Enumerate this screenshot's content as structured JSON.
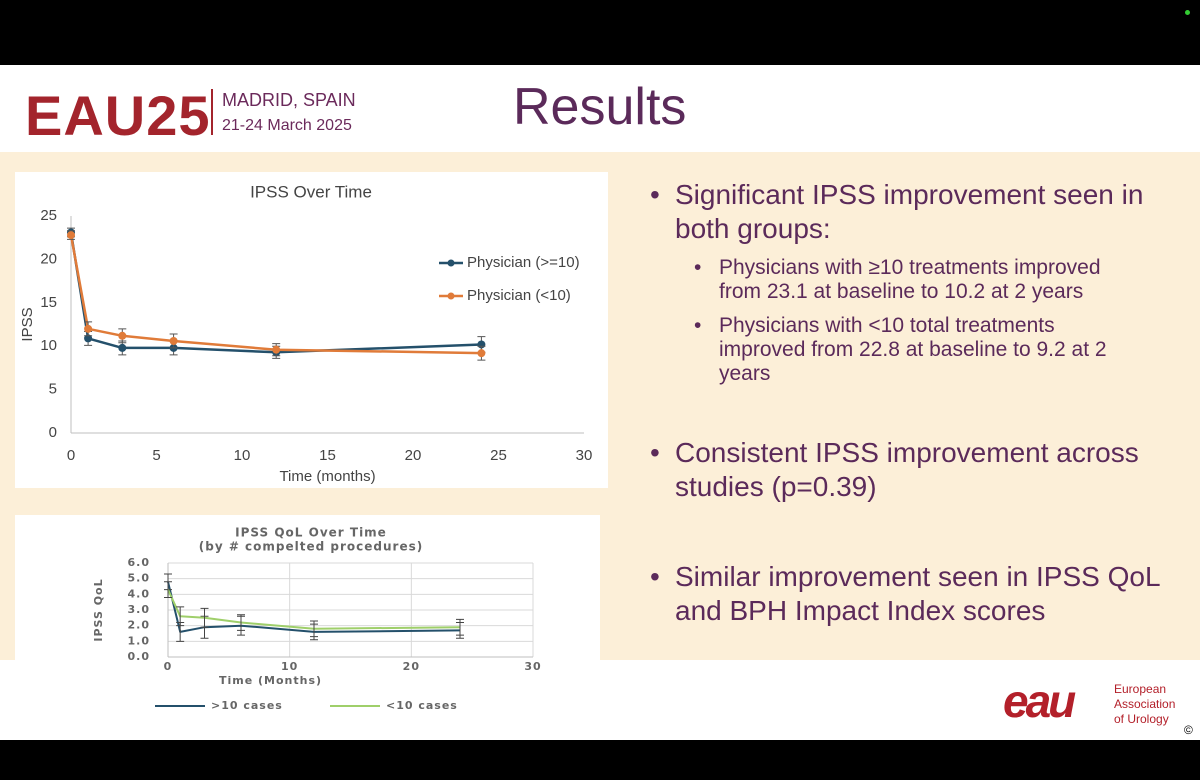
{
  "header": {
    "brand": "EAU25",
    "location": "MADRID, SPAIN",
    "dates": "21-24 March 2025",
    "title": "Results"
  },
  "chart_data": [
    {
      "type": "line",
      "title": "IPSS Over Time",
      "x_label": "Time (months)",
      "y_label": "IPSS",
      "x": [
        0,
        1,
        3,
        6,
        12,
        24
      ],
      "xlim": [
        0,
        30
      ],
      "xticks": [
        0,
        5,
        10,
        15,
        20,
        25,
        30
      ],
      "ylim": [
        0,
        25
      ],
      "yticks": [
        0,
        5,
        10,
        15,
        20,
        25
      ],
      "grid": false,
      "markers": true,
      "legend": "right",
      "series": [
        {
          "name": "Physician (>=10)",
          "color": "#24506b",
          "values": [
            23.1,
            10.9,
            9.8,
            9.8,
            9.3,
            10.2
          ],
          "errors": [
            0.5,
            0.8,
            0.8,
            0.8,
            0.7,
            0.9
          ]
        },
        {
          "name": "Physician (<10)",
          "color": "#e07b39",
          "values": [
            22.8,
            12.0,
            11.2,
            10.6,
            9.6,
            9.2
          ],
          "errors": [
            0.5,
            0.8,
            0.8,
            0.8,
            0.7,
            0.8
          ]
        }
      ]
    },
    {
      "type": "line",
      "title": "IPSS QoL Over Time",
      "subtitle": "(by # compelted procedures)",
      "x_label": "Time (Months)",
      "y_label": "IPSS QoL",
      "x": [
        0,
        1,
        3,
        6,
        12,
        24
      ],
      "xlim": [
        0,
        30
      ],
      "xticks": [
        0,
        10,
        20,
        30
      ],
      "ylim": [
        0,
        6
      ],
      "yticks": [
        {
          "value": 0,
          "label": "0.0"
        },
        {
          "value": 1,
          "label": "1.0"
        },
        {
          "value": 2,
          "label": "2.0"
        },
        {
          "value": 3,
          "label": "3.0"
        },
        {
          "value": 4,
          "label": "4.0"
        },
        {
          "value": 5,
          "label": "5.0"
        },
        {
          "value": 6,
          "label": "6.0"
        }
      ],
      "grid": true,
      "markers": false,
      "legend": "bottom",
      "series": [
        {
          "name": ">10 cases",
          "color": "#24506b",
          "values": [
            4.8,
            1.6,
            1.9,
            2.0,
            1.6,
            1.7
          ],
          "errors": [
            0.5,
            0.6,
            0.7,
            0.6,
            0.5,
            0.5
          ]
        },
        {
          "name": "<10 cases",
          "color": "#9fcf6a",
          "values": [
            4.3,
            2.6,
            2.5,
            2.2,
            1.8,
            1.9
          ],
          "errors": [
            0.5,
            0.6,
            0.6,
            0.5,
            0.5,
            0.5
          ]
        }
      ]
    }
  ],
  "bullets": [
    {
      "text": "Significant IPSS improvement seen in both groups:",
      "sub": [
        "Physicians with ≥10 treatments improved from 23.1 at baseline to 10.2 at 2 years",
        "Physicians with <10 total treatments improved from 22.8 at baseline to 9.2 at 2 years"
      ]
    },
    {
      "text": "Consistent IPSS improvement across studies (p=0.39)",
      "sub": []
    },
    {
      "text": "Similar improvement seen in IPSS QoL and BPH Impact Index scores",
      "sub": []
    }
  ],
  "footer": {
    "logo": "eau",
    "org_lines": [
      "European",
      "Association",
      "of Urology"
    ],
    "copyright": "©"
  }
}
